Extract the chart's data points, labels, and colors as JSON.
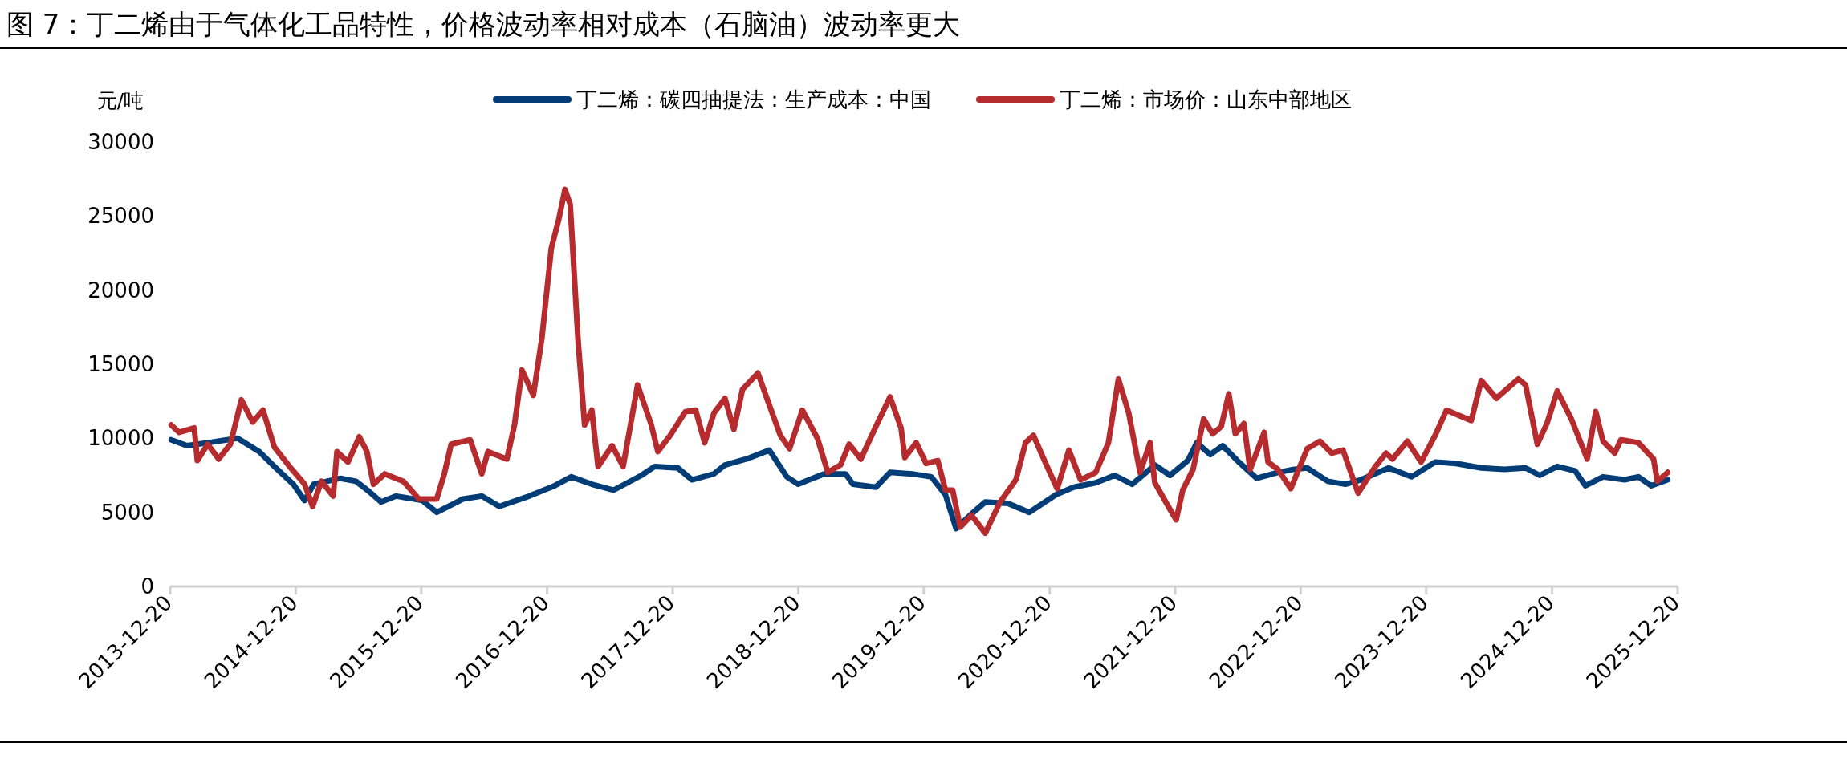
{
  "chart_data": {
    "type": "line",
    "title": "图 7：丁二烯由于气体化工品特性，价格波动率相对成本（石脑油）波动率更大",
    "ylabel": "元/吨",
    "legend": "top",
    "grid": false,
    "marker": "none",
    "line_style": "solid",
    "ylim": [
      0,
      30000
    ],
    "yticks": [
      0,
      5000,
      10000,
      15000,
      20000,
      25000,
      30000
    ],
    "xlim": [
      "2013-12-20",
      "2025-12-20"
    ],
    "xticks": [
      "2013-12-20",
      "2014-12-20",
      "2015-12-20",
      "2016-12-20",
      "2017-12-20",
      "2018-12-20",
      "2019-12-20",
      "2020-12-20",
      "2021-12-20",
      "2022-12-20",
      "2023-12-20",
      "2024-12-20",
      "2025-12-20"
    ],
    "series": [
      {
        "name": "丁二烯：碳四抽提法：生产成本：中国",
        "color": "#033d78",
        "x": [
          "2013-12-23",
          "2014-02-07",
          "2014-04-08",
          "2014-07-04",
          "2014-09-05",
          "2014-10-19",
          "2014-12-13",
          "2015-01-15",
          "2015-02-10",
          "2015-04-29",
          "2015-06-13",
          "2015-07-22",
          "2015-08-25",
          "2015-10-08",
          "2015-12-23",
          "2016-02-03",
          "2016-04-19",
          "2016-06-13",
          "2016-08-03",
          "2016-10-29",
          "2017-01-11",
          "2017-02-28",
          "2017-04-29",
          "2017-07-01",
          "2017-09-20",
          "2017-10-29",
          "2018-01-04",
          "2018-02-14",
          "2018-04-19",
          "2018-05-21",
          "2018-07-22",
          "2018-09-27",
          "2018-11-17",
          "2018-12-20",
          "2019-03-05",
          "2019-05-07",
          "2019-05-28",
          "2019-08-03",
          "2019-09-13",
          "2019-11-17",
          "2020-01-11",
          "2020-02-21",
          "2020-03-23",
          "2020-05-07",
          "2020-06-16",
          "2020-08-21",
          "2020-10-22",
          "2021-01-08",
          "2021-02-28",
          "2021-05-03",
          "2021-06-27",
          "2021-08-17",
          "2021-10-22",
          "2021-12-05",
          "2022-01-26",
          "2022-02-21",
          "2022-04-01",
          "2022-05-07",
          "2022-06-23",
          "2022-08-14",
          "2022-10-15",
          "2022-11-28",
          "2023-01-08",
          "2023-03-09",
          "2023-04-29",
          "2023-06-13",
          "2023-09-02",
          "2023-11-07",
          "2024-01-15",
          "2024-03-16",
          "2024-05-28",
          "2024-08-03",
          "2024-10-04",
          "2024-11-14",
          "2025-01-04",
          "2025-02-25",
          "2025-03-27",
          "2025-05-17",
          "2025-07-19",
          "2025-08-28",
          "2025-10-04",
          "2025-11-21"
        ],
        "values": [
          9900,
          9500,
          9700,
          10000,
          9100,
          8100,
          6900,
          5800,
          6900,
          7300,
          7100,
          6400,
          5700,
          6100,
          5800,
          5000,
          5900,
          6100,
          5400,
          6100,
          6800,
          7400,
          6900,
          6500,
          7500,
          8100,
          8000,
          7200,
          7600,
          8200,
          8600,
          9200,
          7400,
          6900,
          7600,
          7600,
          6900,
          6700,
          7700,
          7600,
          7400,
          6200,
          3900,
          4900,
          5700,
          5600,
          5000,
          6200,
          6700,
          7000,
          7500,
          6900,
          8200,
          7500,
          8500,
          9700,
          8900,
          9500,
          8400,
          7300,
          7700,
          7900,
          8000,
          7100,
          6900,
          7200,
          8000,
          7400,
          8400,
          8300,
          8000,
          7900,
          8000,
          7500,
          8100,
          7800,
          6800,
          7400,
          7200,
          7400,
          6800,
          7200
        ]
      },
      {
        "name": "丁二烯：市场价：山东中部地区",
        "color": "#b52b2e",
        "x": [
          "2013-12-23",
          "2014-01-15",
          "2014-02-28",
          "2014-03-09",
          "2014-04-08",
          "2014-05-10",
          "2014-06-13",
          "2014-07-15",
          "2014-08-17",
          "2014-09-16",
          "2014-10-19",
          "2014-12-02",
          "2015-01-15",
          "2015-02-07",
          "2015-03-05",
          "2015-04-08",
          "2015-04-19",
          "2015-05-21",
          "2015-06-23",
          "2015-07-15",
          "2015-08-03",
          "2015-09-05",
          "2015-10-29",
          "2015-12-13",
          "2016-02-03",
          "2016-02-25",
          "2016-03-16",
          "2016-05-10",
          "2016-06-13",
          "2016-07-01",
          "2016-08-25",
          "2016-09-16",
          "2016-10-08",
          "2016-11-10",
          "2016-12-05",
          "2017-01-01",
          "2017-01-23",
          "2017-02-10",
          "2017-02-25",
          "2017-03-20",
          "2017-04-08",
          "2017-04-29",
          "2017-05-17",
          "2017-06-27",
          "2017-07-29",
          "2017-09-09",
          "2017-10-19",
          "2017-11-07",
          "2017-12-13",
          "2018-01-26",
          "2018-02-25",
          "2018-03-23",
          "2018-04-19",
          "2018-05-21",
          "2018-06-16",
          "2018-07-11",
          "2018-08-25",
          "2018-09-20",
          "2018-10-29",
          "2018-11-25",
          "2019-01-01",
          "2019-02-14",
          "2019-03-16",
          "2019-04-22",
          "2019-05-17",
          "2019-06-20",
          "2019-08-03",
          "2019-09-13",
          "2019-10-15",
          "2019-10-26",
          "2019-11-28",
          "2019-12-27",
          "2020-01-30",
          "2020-02-21",
          "2020-03-13",
          "2020-04-04",
          "2020-05-07",
          "2020-06-16",
          "2020-07-29",
          "2020-09-13",
          "2020-10-11",
          "2020-11-03",
          "2020-12-05",
          "2021-01-11",
          "2021-02-14",
          "2021-03-20",
          "2021-05-03",
          "2021-06-09",
          "2021-07-08",
          "2021-08-07",
          "2021-09-09",
          "2021-10-08",
          "2021-10-22",
          "2021-12-05",
          "2021-12-23",
          "2022-01-11",
          "2022-02-10",
          "2022-03-13",
          "2022-04-08",
          "2022-05-03",
          "2022-05-25",
          "2022-06-13",
          "2022-07-08",
          "2022-07-26",
          "2022-09-05",
          "2022-09-16",
          "2022-10-15",
          "2022-11-21",
          "2023-01-08",
          "2023-02-14",
          "2023-03-20",
          "2023-04-22",
          "2023-06-05",
          "2023-07-22",
          "2023-08-25",
          "2023-09-13",
          "2023-10-26",
          "2023-12-05",
          "2024-01-15",
          "2024-02-17",
          "2024-04-29",
          "2024-05-28",
          "2024-07-11",
          "2024-09-13",
          "2024-10-04",
          "2024-11-07",
          "2024-12-05",
          "2025-01-04",
          "2025-02-14",
          "2025-04-01",
          "2025-04-26",
          "2025-05-17",
          "2025-06-20",
          "2025-07-08",
          "2025-08-28",
          "2025-10-11",
          "2025-10-22",
          "2025-11-21"
        ],
        "values": [
          10900,
          10400,
          10700,
          8500,
          9600,
          8600,
          9600,
          12600,
          11100,
          11900,
          9400,
          8100,
          6900,
          5400,
          7100,
          6100,
          9100,
          8400,
          10100,
          9100,
          6900,
          7600,
          7100,
          5900,
          5900,
          7600,
          9600,
          9900,
          7600,
          9100,
          8600,
          10900,
          14600,
          12900,
          16800,
          22800,
          24800,
          26800,
          25800,
          16600,
          10900,
          11900,
          8100,
          9500,
          8100,
          13600,
          10900,
          9100,
          10200,
          11800,
          11900,
          9700,
          11700,
          12700,
          10600,
          13300,
          14400,
          12700,
          10200,
          9300,
          11900,
          10000,
          7700,
          8200,
          9600,
          8600,
          10800,
          12800,
          10700,
          8700,
          9700,
          8300,
          8500,
          6500,
          6500,
          4000,
          4800,
          3600,
          5700,
          7200,
          9700,
          10200,
          8500,
          6600,
          9200,
          7200,
          7700,
          9700,
          14000,
          11700,
          7700,
          9700,
          7000,
          5200,
          4500,
          6500,
          7900,
          11300,
          10300,
          10800,
          13000,
          10300,
          11000,
          7900,
          10400,
          8400,
          7900,
          6600,
          9300,
          9800,
          9000,
          9200,
          6300,
          8000,
          9000,
          8600,
          9800,
          8400,
          10200,
          11900,
          11200,
          13900,
          12700,
          14000,
          13600,
          9600,
          11000,
          13200,
          11300,
          8600,
          11800,
          9800,
          9000,
          9900,
          9700,
          8600,
          7100,
          7700
        ]
      }
    ]
  }
}
